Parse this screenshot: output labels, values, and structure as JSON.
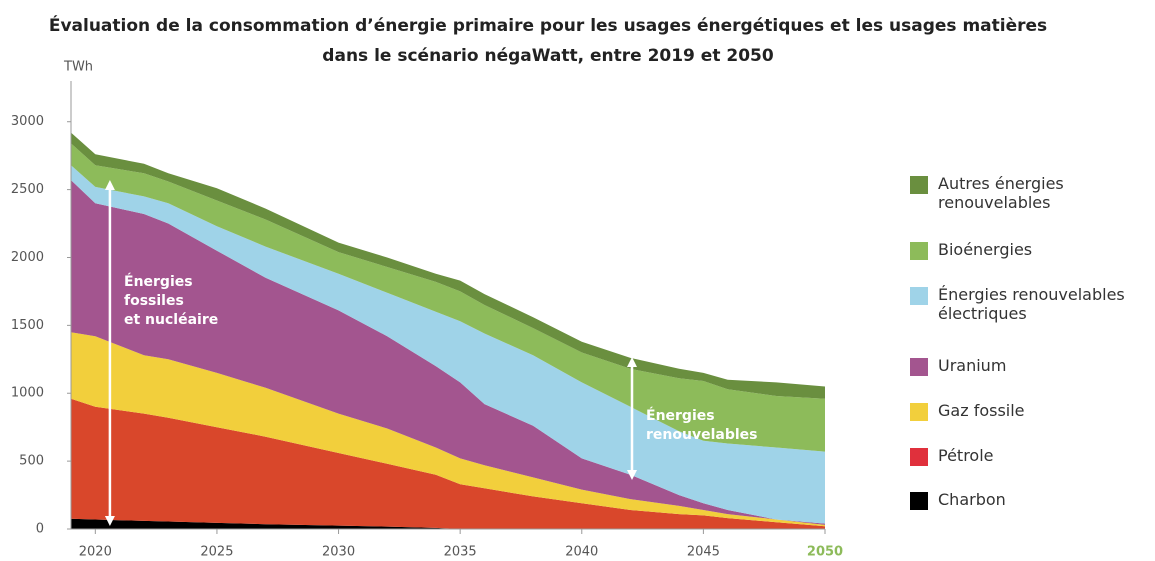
{
  "chart_data": {
    "type": "stacked_area",
    "title": [
      "Évaluation de la consommation d’énergie primaire pour les usages énergétiques et les usages matières",
      "dans le scénario négaWatt, entre 2019 et 2050"
    ],
    "ylabel": "TWh",
    "x": [
      2019,
      2020,
      2022,
      2023,
      2025,
      2027,
      2030,
      2032,
      2034,
      2035,
      2036,
      2038,
      2040,
      2042,
      2044,
      2045,
      2046,
      2048,
      2050
    ],
    "series": [
      {
        "name": "Charbon",
        "color": "#000000",
        "values": [
          75,
          70,
          60,
          55,
          45,
          35,
          25,
          18,
          8,
          0,
          0,
          0,
          0,
          0,
          0,
          0,
          0,
          0,
          0
        ]
      },
      {
        "name": "Pétrole",
        "color": "#d9472b",
        "values": [
          885,
          830,
          790,
          765,
          705,
          645,
          535,
          462,
          392,
          330,
          300,
          240,
          190,
          140,
          110,
          100,
          80,
          50,
          20
        ]
      },
      {
        "name": "Gaz fossile",
        "color": "#f2cf3c",
        "values": [
          490,
          520,
          430,
          430,
          400,
          360,
          290,
          260,
          200,
          190,
          170,
          140,
          100,
          80,
          60,
          40,
          30,
          20,
          10
        ]
      },
      {
        "name": "Uranium",
        "color": "#a3558f",
        "values": [
          1120,
          980,
          1040,
          1000,
          900,
          810,
          760,
          680,
          600,
          560,
          450,
          380,
          230,
          180,
          80,
          50,
          30,
          0,
          10
        ]
      },
      {
        "name": "Énergies renouvelables électriques",
        "color": "#9fd3e8",
        "values": [
          110,
          120,
          130,
          150,
          180,
          230,
          270,
          320,
          400,
          450,
          520,
          520,
          560,
          500,
          470,
          460,
          490,
          530,
          530
        ]
      },
      {
        "name": "Bioénergies",
        "color": "#8dbb5a",
        "values": [
          160,
          160,
          170,
          160,
          190,
          200,
          160,
          190,
          220,
          220,
          210,
          200,
          220,
          280,
          390,
          440,
          400,
          380,
          390
        ]
      },
      {
        "name": "Autres énergies renouvelables",
        "color": "#6a8f3f",
        "values": [
          80,
          80,
          70,
          60,
          90,
          80,
          70,
          70,
          60,
          80,
          80,
          80,
          80,
          80,
          70,
          60,
          70,
          100,
          90
        ]
      }
    ],
    "xlim": [
      2019,
      2050
    ],
    "ylim": [
      0,
      3300
    ],
    "xticks": [
      2020,
      2025,
      2030,
      2035,
      2040,
      2045,
      2050
    ],
    "yticks": [
      0,
      500,
      1000,
      1500,
      2000,
      2500,
      3000
    ],
    "annotations": [
      [
        "Énergies",
        "fossiles",
        "et nucléaire"
      ],
      [
        "Énergies",
        "renouvelables"
      ]
    ]
  }
}
